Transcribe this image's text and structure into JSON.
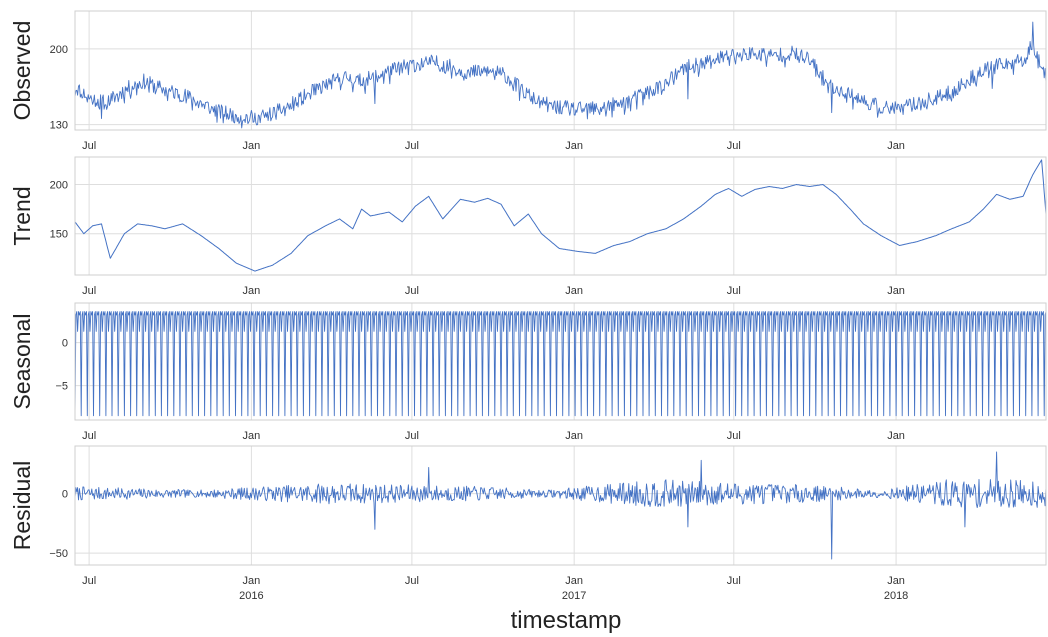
{
  "chart_data": {
    "type": "line",
    "line_color": "#4472c4",
    "grid": true,
    "xlabel": "timestamp",
    "x_range": [
      "2015-06-15",
      "2018-06-20"
    ],
    "x_ticks": [
      {
        "date": "2015-07-01",
        "label": "Jul",
        "year": ""
      },
      {
        "date": "2016-01-01",
        "label": "Jan",
        "year": "2016"
      },
      {
        "date": "2016-07-01",
        "label": "Jul",
        "year": ""
      },
      {
        "date": "2017-01-01",
        "label": "Jan",
        "year": "2017"
      },
      {
        "date": "2017-07-01",
        "label": "Jul",
        "year": ""
      },
      {
        "date": "2018-01-01",
        "label": "Jan",
        "year": "2018"
      }
    ],
    "panels": [
      {
        "name": "observed",
        "ylabel": "Observed",
        "ylim": [
          125,
          235
        ],
        "yticks": [
          {
            "v": 200,
            "label": "200"
          },
          {
            "v": 130,
            "label": "130"
          }
        ],
        "dates": [
          "2015-06-15",
          "2015-07-01",
          "2015-07-20",
          "2015-08-10",
          "2015-09-01",
          "2015-09-25",
          "2015-10-15",
          "2015-11-05",
          "2015-11-25",
          "2015-12-15",
          "2016-01-05",
          "2016-01-25",
          "2016-02-15",
          "2016-03-05",
          "2016-03-25",
          "2016-04-15",
          "2016-05-05",
          "2016-05-25",
          "2016-06-15",
          "2016-07-05",
          "2016-07-25",
          "2016-08-15",
          "2016-09-05",
          "2016-09-25",
          "2016-10-15",
          "2016-11-05",
          "2016-11-25",
          "2016-12-15",
          "2017-01-05",
          "2017-01-25",
          "2017-02-15",
          "2017-03-05",
          "2017-03-25",
          "2017-04-15",
          "2017-05-05",
          "2017-05-25",
          "2017-06-15",
          "2017-07-05",
          "2017-07-25",
          "2017-08-15",
          "2017-09-05",
          "2017-09-25",
          "2017-10-15",
          "2017-11-05",
          "2017-11-25",
          "2017-12-15",
          "2018-01-05",
          "2018-01-25",
          "2018-02-15",
          "2018-03-05",
          "2018-03-25",
          "2018-04-15",
          "2018-05-05",
          "2018-05-25",
          "2018-06-05",
          "2018-06-20"
        ],
        "values": [
          165,
          155,
          150,
          162,
          170,
          162,
          158,
          150,
          142,
          138,
          136,
          140,
          148,
          158,
          167,
          174,
          170,
          176,
          182,
          186,
          188,
          183,
          178,
          180,
          176,
          160,
          150,
          146,
          144,
          145,
          148,
          152,
          160,
          168,
          182,
          186,
          192,
          195,
          196,
          194,
          196,
          190,
          168,
          160,
          152,
          146,
          145,
          150,
          154,
          160,
          172,
          182,
          186,
          190,
          205,
          175
        ],
        "noise": 7,
        "seed": 11,
        "spikes": [
          [
            "2015-07-15",
            -20
          ],
          [
            "2016-05-20",
            -28
          ],
          [
            "2017-05-10",
            -25
          ],
          [
            "2017-10-20",
            -30
          ],
          [
            "2018-04-20",
            -18
          ],
          [
            "2018-06-05",
            15
          ]
        ]
      },
      {
        "name": "trend",
        "ylabel": "Trend",
        "ylim": [
          108,
          228
        ],
        "yticks": [
          {
            "v": 200,
            "label": "200"
          },
          {
            "v": 150,
            "label": "150"
          }
        ],
        "dates": [
          "2015-06-15",
          "2015-06-25",
          "2015-07-05",
          "2015-07-15",
          "2015-07-25",
          "2015-08-10",
          "2015-08-25",
          "2015-09-10",
          "2015-09-25",
          "2015-10-15",
          "2015-11-05",
          "2015-11-25",
          "2015-12-15",
          "2016-01-05",
          "2016-01-25",
          "2016-02-15",
          "2016-03-05",
          "2016-03-25",
          "2016-04-10",
          "2016-04-25",
          "2016-05-05",
          "2016-05-15",
          "2016-06-05",
          "2016-06-20",
          "2016-07-05",
          "2016-07-20",
          "2016-08-05",
          "2016-08-25",
          "2016-09-10",
          "2016-09-25",
          "2016-10-10",
          "2016-10-25",
          "2016-11-10",
          "2016-11-25",
          "2016-12-15",
          "2017-01-05",
          "2017-01-25",
          "2017-02-15",
          "2017-03-05",
          "2017-03-25",
          "2017-04-15",
          "2017-05-05",
          "2017-05-25",
          "2017-06-10",
          "2017-06-25",
          "2017-07-10",
          "2017-07-25",
          "2017-08-10",
          "2017-08-25",
          "2017-09-10",
          "2017-09-25",
          "2017-10-10",
          "2017-10-25",
          "2017-11-10",
          "2017-11-25",
          "2017-12-15",
          "2018-01-05",
          "2018-01-25",
          "2018-02-15",
          "2018-03-05",
          "2018-03-25",
          "2018-04-10",
          "2018-04-25",
          "2018-05-10",
          "2018-05-25",
          "2018-06-05",
          "2018-06-15",
          "2018-06-20"
        ],
        "values": [
          162,
          150,
          158,
          160,
          125,
          150,
          160,
          158,
          155,
          160,
          148,
          135,
          120,
          112,
          118,
          130,
          148,
          158,
          165,
          155,
          175,
          168,
          172,
          162,
          178,
          188,
          165,
          185,
          182,
          186,
          180,
          158,
          170,
          150,
          135,
          132,
          130,
          138,
          142,
          150,
          155,
          165,
          178,
          190,
          196,
          188,
          195,
          198,
          196,
          200,
          198,
          200,
          190,
          175,
          160,
          148,
          138,
          142,
          148,
          155,
          162,
          175,
          190,
          185,
          188,
          210,
          225,
          170
        ],
        "noise": 0,
        "seed": 3,
        "spikes": []
      },
      {
        "name": "seasonal",
        "ylabel": "Seasonal",
        "ylim": [
          -9,
          4.6
        ],
        "yticks": [
          {
            "v": 0,
            "label": "0"
          },
          {
            "v": -5,
            "label": "−5"
          }
        ],
        "max": 3.6,
        "min": -8.5,
        "period_days": 7
      },
      {
        "name": "residual",
        "ylabel": "Residual",
        "ylim": [
          -60,
          40
        ],
        "yticks": [
          {
            "v": 0,
            "label": "0"
          },
          {
            "v": -50,
            "label": "−50"
          }
        ],
        "noise_windows": [
          [
            "2015-06-15",
            6
          ],
          [
            "2015-11-01",
            3
          ],
          [
            "2016-04-01",
            9
          ],
          [
            "2016-09-15",
            6
          ],
          [
            "2016-12-01",
            3
          ],
          [
            "2017-04-01",
            12
          ],
          [
            "2017-10-01",
            7
          ],
          [
            "2017-12-15",
            3
          ],
          [
            "2018-03-01",
            12
          ],
          [
            "2018-06-20",
            12
          ]
        ],
        "seed": 7,
        "spikes": [
          [
            "2016-05-20",
            -30
          ],
          [
            "2017-05-10",
            -28
          ],
          [
            "2017-10-20",
            -55
          ],
          [
            "2018-04-25",
            35
          ],
          [
            "2018-03-20",
            -28
          ],
          [
            "2017-05-25",
            28
          ],
          [
            "2016-07-20",
            22
          ]
        ]
      }
    ]
  }
}
